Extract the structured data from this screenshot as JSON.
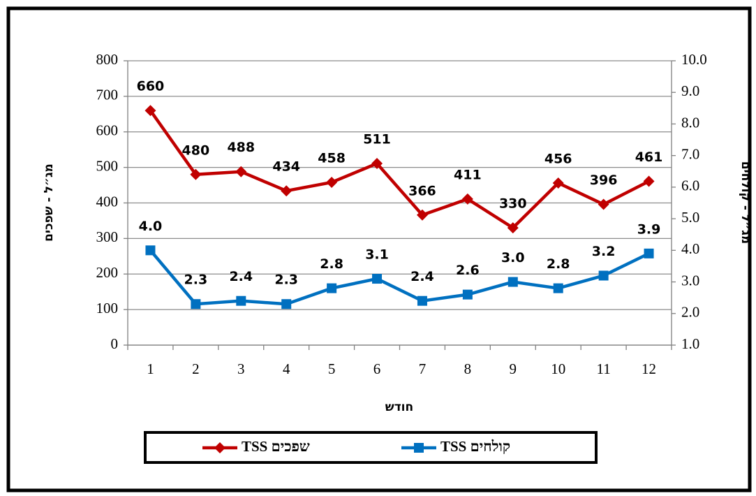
{
  "chart_data": {
    "type": "line",
    "categories": [
      "1",
      "2",
      "3",
      "4",
      "5",
      "6",
      "7",
      "8",
      "9",
      "10",
      "11",
      "12"
    ],
    "x_label": "חודש",
    "y_label": "מג״ל - שפכים",
    "y2_label": "מג״ל - קולחים",
    "ylim": [
      0,
      800
    ],
    "yticks": [
      0,
      100,
      200,
      300,
      400,
      500,
      600,
      700,
      800
    ],
    "y2lim": [
      1,
      10
    ],
    "y2ticks": [
      {
        "value": 1,
        "label": "1.0"
      },
      {
        "value": 2,
        "label": "2.0"
      },
      {
        "value": 3,
        "label": "3.0"
      },
      {
        "value": 4,
        "label": "4.0"
      },
      {
        "value": 5,
        "label": "5.0"
      },
      {
        "value": 6,
        "label": "6.0"
      },
      {
        "value": 7,
        "label": "7.0"
      },
      {
        "value": 8,
        "label": "8.0"
      },
      {
        "value": 9,
        "label": "9.0"
      },
      {
        "value": 10,
        "label": "10.0"
      }
    ],
    "grid": true,
    "legend": "bottom",
    "series": [
      {
        "name": "TSS שפכים",
        "color": "#c00000",
        "marker": "diamond",
        "values": [
          660,
          480,
          488,
          434,
          458,
          511,
          366,
          411,
          330,
          456,
          396,
          461
        ]
      },
      {
        "name": "TSS קולחים",
        "color": "#0070c0",
        "marker": "square",
        "axis": "y2",
        "values": [
          4.0,
          2.3,
          2.4,
          2.3,
          2.8,
          3.1,
          2.4,
          2.6,
          3.0,
          2.8,
          3.2,
          3.9
        ],
        "value_labels": [
          "4.0",
          "2.3",
          "2.4",
          "2.3",
          "2.8",
          "3.1",
          "2.4",
          "2.6",
          "3.0",
          "2.8",
          "3.2",
          "3.9"
        ]
      }
    ]
  }
}
